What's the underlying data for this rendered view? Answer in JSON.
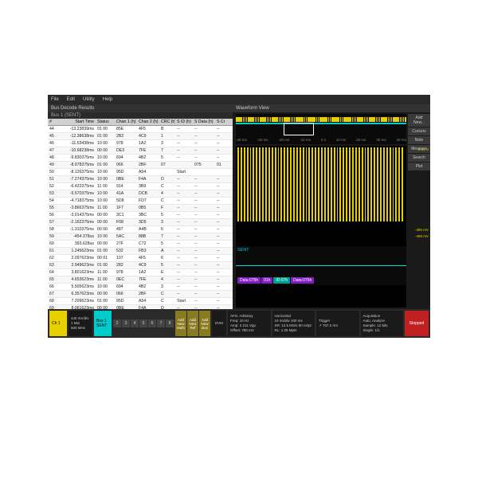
{
  "menu": {
    "file": "File",
    "edit": "Edit",
    "utility": "Utility",
    "help": "Help"
  },
  "leftPanel": {
    "title": "Bus Decode Results",
    "busLabel": "Bus 1 (SENT)"
  },
  "columns": [
    "#",
    "Start Time",
    "Status",
    "Chan 1 (h)",
    "Chan 2 (h)",
    "CRC (h)",
    "S ID (h)",
    "S Data (h)",
    "S Cr"
  ],
  "rows": [
    [
      "44",
      "-13.23839ms",
      "01 00",
      "85E",
      "4F5",
      "B",
      "--",
      "--",
      "--"
    ],
    [
      "45",
      "-12.38638ms",
      "01 00",
      "2B2",
      "4C9",
      "1",
      "--",
      "--",
      "--"
    ],
    [
      "46",
      "-11.53438ms",
      "10 00",
      "978",
      "1A2",
      "3",
      "--",
      "--",
      "--"
    ],
    [
      "47",
      "-10.68238ms",
      "00 00",
      "DE3",
      "7FE",
      "7",
      "--",
      "--",
      "--"
    ],
    [
      "48",
      "-9.830375ms",
      "10 00",
      "694",
      "4B2",
      "5",
      "--",
      "--",
      "--"
    ],
    [
      "49",
      "-8.978375ms",
      "01 00",
      "066",
      "2BF",
      "07",
      "",
      "075",
      "01"
    ],
    [
      "50",
      "-8.126375ms",
      "10 00",
      "95D",
      "A54",
      "",
      "Start",
      "",
      ""
    ],
    [
      "51",
      "-7.274375ms",
      "10 00",
      "0BE",
      "F4A",
      "D",
      "--",
      "--",
      "--"
    ],
    [
      "52",
      "-6.422375ms",
      "11 00",
      "914",
      "3B9",
      "C",
      "--",
      "--",
      "--"
    ],
    [
      "53",
      "-5.570375ms",
      "10 00",
      "41A",
      "DCB",
      "4",
      "--",
      "--",
      "--"
    ],
    [
      "54",
      "-4.718375ms",
      "10 00",
      "5D8",
      "FD7",
      "C",
      "--",
      "--",
      "--"
    ],
    [
      "55",
      "-3.866375ms",
      "11 00",
      "1F7",
      "0B5",
      "F",
      "--",
      "--",
      "--"
    ],
    [
      "56",
      "-3.014375ms",
      "00 00",
      "3C1",
      "3BC",
      "5",
      "--",
      "--",
      "--"
    ],
    [
      "57",
      "-2.162375ms",
      "00 00",
      "F08",
      "3D5",
      "3",
      "--",
      "--",
      "--"
    ],
    [
      "58",
      "-1.310375ms",
      "00 00",
      "487",
      "A4B",
      "6",
      "--",
      "--",
      "--"
    ],
    [
      "59",
      "-454.378us",
      "10 00",
      "5AC",
      "88B",
      "7",
      "--",
      "--",
      "--"
    ],
    [
      "60",
      "393.628us",
      "00 00",
      "27F",
      "C72",
      "5",
      "--",
      "--",
      "--"
    ],
    [
      "61",
      "1.245623ms",
      "01 00",
      "532",
      "FB3",
      "A",
      "--",
      "--",
      "--"
    ],
    [
      "62",
      "2.097623ms",
      "00 01",
      "107",
      "4F5",
      "6",
      "--",
      "--",
      "--"
    ],
    [
      "63",
      "2.949623ms",
      "01 00",
      "282",
      "4C9",
      "5",
      "--",
      "--",
      "--"
    ],
    [
      "64",
      "3.801623ms",
      "11 00",
      "978",
      "1A2",
      "E",
      "--",
      "--",
      "--"
    ],
    [
      "65",
      "4.653623ms",
      "11 00",
      "0EC",
      "7FE",
      "4",
      "--",
      "--",
      "--"
    ],
    [
      "66",
      "5.505623ms",
      "10 00",
      "694",
      "4B2",
      "3",
      "--",
      "--",
      "--"
    ],
    [
      "67",
      "6.357623ms",
      "00 00",
      "066",
      "2BF",
      "C",
      "--",
      "--",
      "--"
    ],
    [
      "68",
      "7.209623ms",
      "01 00",
      "95D",
      "A54",
      "C",
      "Start",
      "--",
      "--"
    ],
    [
      "69",
      "8.061623ms",
      "00 00",
      "0BE",
      "F4A",
      "D",
      "--",
      "--",
      "--"
    ],
    [
      "70",
      "8.913623ms",
      "00 00",
      "4A8",
      "003",
      "0",
      "--",
      "--",
      "--"
    ],
    [
      "71",
      "9.765623ms",
      "10 00",
      "41A",
      "DCB",
      "4",
      "--",
      "--",
      "--"
    ],
    [
      "72",
      "10.61762ms",
      "10 00",
      "8BD",
      "FD7",
      "C",
      "--",
      "--",
      "--"
    ],
    [
      "73",
      "11.46962ms",
      "11 00",
      "1F7",
      "0B5",
      "2",
      "--",
      "--",
      "--"
    ],
    [
      "74",
      "12.32162ms",
      "00 00",
      "3C1",
      "3BC",
      "4",
      "--",
      "--",
      "--"
    ]
  ],
  "waveform": {
    "title": "Waveform View",
    "sideButtons": [
      "Add New...",
      "Cursors",
      "Note",
      "Measure",
      "Search",
      "Plot"
    ],
    "timeTicks": [
      "-40 ms",
      "-30 ms",
      "-20 ms",
      "-10 ms",
      "0 s",
      "10 ms",
      "20 ms",
      "30 ms",
      "40 ms"
    ],
    "scaleLabel": "2.58 ms/div",
    "voltLabels": {
      "top": "2.01 V",
      "mid": "-380 mV",
      "bot": "-480 mV"
    },
    "sent": "SENT",
    "packets": [
      {
        "type": "data",
        "label": "Data:075h"
      },
      {
        "type": "data",
        "label": "01h"
      },
      {
        "type": "id",
        "label": "ID:07h"
      },
      {
        "type": "data",
        "label": "Data:075h"
      }
    ]
  },
  "bottom": {
    "ch1": {
      "label": "Ch 1",
      "v": "440 mV/div",
      "bw": "1 MΩ",
      "extra": "500 MHz"
    },
    "bus": {
      "label": "Bus 1",
      "val": "SENT"
    },
    "numBtns": [
      "2",
      "3",
      "4",
      "5",
      "6",
      "7",
      "8"
    ],
    "addBtns": [
      "Add New Math",
      "Add New Ref",
      "Add New Bus"
    ],
    "dvm": "DVM",
    "afg": {
      "title": "AFG: Arbitrary",
      "l1": "Freq: 10 Hz",
      "l2": "Amp: 2.211 Vpp",
      "l3": "Offset: 780 mV"
    },
    "horiz": {
      "title": "Horizontal",
      "l1": "10 ms/div    100 ms",
      "l2": "SR: 12.5 MS/s   80 ns/pt",
      "l3": "RL: 1.25 Mpts"
    },
    "trig": {
      "title": "Trigger",
      "l1": "↗ 707.2 mV",
      "l2": ""
    },
    "acq": {
      "title": "Acquisition",
      "l1": "Auto,  Analyze",
      "l2": "Sample: 12 bits",
      "l3": "Single: 1/1"
    },
    "stopped": "Stopped"
  },
  "colors": {
    "yellow": "#e6d000",
    "cyan": "#0cc",
    "purple": "#8020c0",
    "teal": "#00a090",
    "bg": "#1a1a1a",
    "panel": "#2a2a2a",
    "red": "#c02020"
  }
}
